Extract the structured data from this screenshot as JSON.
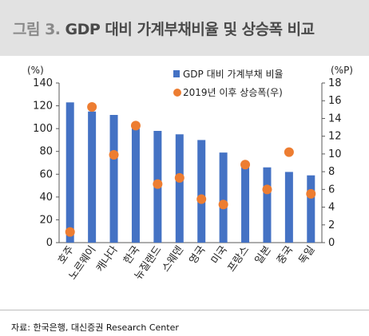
{
  "header": {
    "figure_label": "그림 3.",
    "title": "GDP 대비 가계부채비율 및 상승폭 비교"
  },
  "source": "자료: 한국은행, 대신증권 Research Center",
  "colors": {
    "bar": "#4472c4",
    "dot": "#ed7d31",
    "title_bg": "#e2e2e2"
  },
  "chart_data": {
    "type": "bar",
    "categories": [
      "호주",
      "노르웨이",
      "캐나다",
      "한국",
      "뉴질랜드",
      "스웨덴",
      "영국",
      "미국",
      "프랑스",
      "일본",
      "중국",
      "독일"
    ],
    "series": [
      {
        "name": "GDP 대비 가계부채 비율",
        "type": "bar",
        "axis": "left",
        "values": [
          123,
          115,
          112,
          100,
          98,
          95,
          90,
          79,
          68,
          66,
          62,
          59
        ]
      },
      {
        "name": "2019년 이후 상승폭(우)",
        "type": "scatter",
        "axis": "right",
        "values": [
          1.2,
          15.3,
          9.9,
          13.2,
          6.6,
          7.3,
          4.9,
          4.3,
          8.8,
          6.0,
          10.2,
          5.5
        ]
      }
    ],
    "left_axis": {
      "unit": "(%)",
      "ylim": [
        0,
        140
      ],
      "ticks": [
        0,
        20,
        40,
        60,
        80,
        100,
        120,
        140
      ]
    },
    "right_axis": {
      "unit": "(%P)",
      "ylim": [
        0,
        18
      ],
      "ticks": [
        0,
        2,
        4,
        6,
        8,
        10,
        12,
        14,
        16,
        18
      ]
    },
    "legend_position": "top-right",
    "grid": false
  }
}
